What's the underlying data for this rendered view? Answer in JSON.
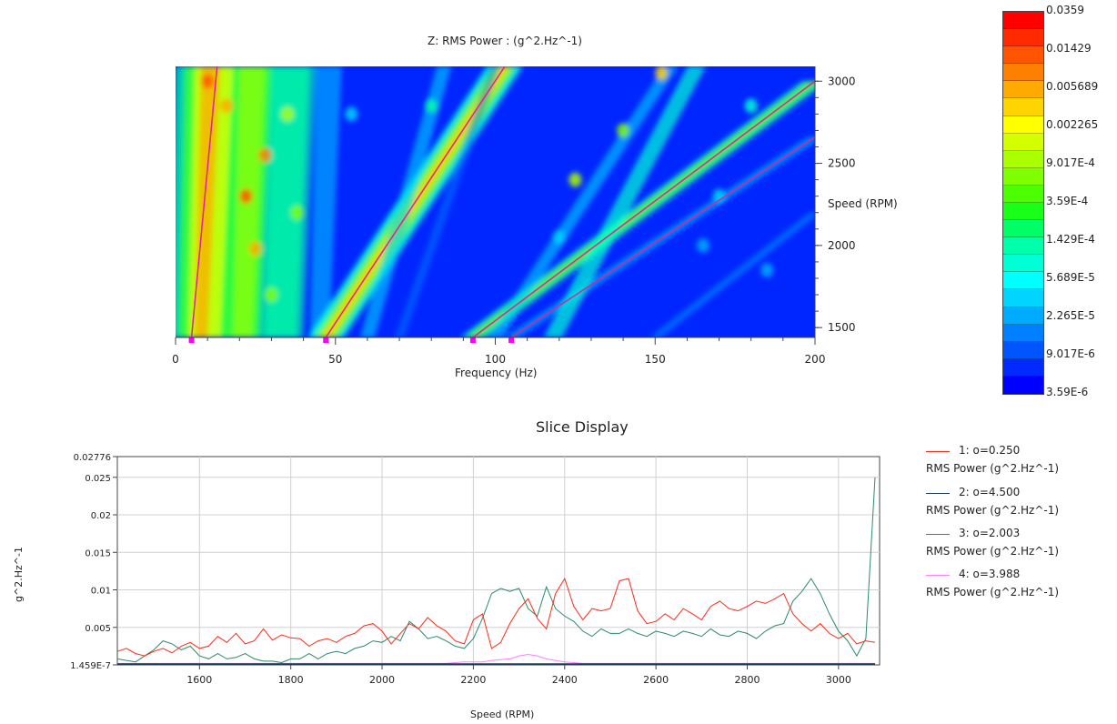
{
  "colors": {
    "map_background": "#0026ff",
    "order_line": "#e0209a",
    "marker": "#ff00ff",
    "grid": "#d0d0d0",
    "axis": "#444444"
  },
  "waterfall": {
    "title": "Z: RMS Power : (g^2.Hz^-1)",
    "xlabel": "Frequency (Hz)",
    "ylabel": "Speed (RPM)",
    "xticks": [
      "0",
      "50",
      "100",
      "150",
      "200"
    ],
    "yticks": [
      "3000",
      "2500",
      "2000",
      "1500"
    ],
    "colorbar_labels": [
      "0.0359",
      "0.01429",
      "0.005689",
      "0.002265",
      "9.017E-4",
      "3.59E-4",
      "1.429E-4",
      "5.689E-5",
      "2.265E-5",
      "9.017E-6",
      "3.59E-6"
    ],
    "colorbar_colors": [
      "#ff0000",
      "#ff2a00",
      "#ff5500",
      "#ff7f00",
      "#ffaa00",
      "#ffd400",
      "#ffff00",
      "#d4ff00",
      "#aaff00",
      "#7fff00",
      "#4cff00",
      "#1aff1a",
      "#00ff66",
      "#00ffaa",
      "#00ffd4",
      "#00ffff",
      "#00d4ff",
      "#00aaff",
      "#007fff",
      "#0055ff",
      "#002aff",
      "#0000ff"
    ]
  },
  "slice": {
    "title": "Slice Display",
    "xlabel": "Speed (RPM)",
    "ylabel": "g^2.Hz^-1",
    "yticks": [
      "0.02776",
      "0.025",
      "0.02",
      "0.015",
      "0.01",
      "0.005",
      "1.459E-7"
    ],
    "xticks": [
      "1600",
      "1800",
      "2000",
      "2200",
      "2400",
      "2600",
      "2800",
      "3000"
    ],
    "legend": [
      {
        "label": "1: o=0.250",
        "sub": "RMS Power (g^2.Hz^-1)",
        "color": "#ff2a1a"
      },
      {
        "label": "2: o=4.500",
        "sub": "RMS Power (g^2.Hz^-1)",
        "color": "#1a3a5a"
      },
      {
        "label": "3: o=2.003",
        "sub": "RMS Power (g^2.Hz^-1)",
        "color": "#2a8a6a"
      },
      {
        "label": "4: o=3.988",
        "sub": "RMS Power (g^2.Hz^-1)",
        "color": "#ff80ff"
      }
    ]
  },
  "chart_data": [
    {
      "type": "heatmap",
      "title": "Z: RMS Power : (g^2.Hz^-1)",
      "xlabel": "Frequency (Hz)",
      "ylabel": "Speed (RPM)",
      "xlim": [
        0,
        200
      ],
      "ylim": [
        1440,
        3090
      ],
      "colorscale": "log",
      "zlim": [
        3.59e-06,
        0.0359
      ],
      "order_lines": [
        {
          "name": "o=0.250",
          "points": [
            [
              5,
              1440
            ],
            [
              13,
              3090
            ]
          ]
        },
        {
          "name": "o=2.003",
          "points": [
            [
              47,
              1440
            ],
            [
              103,
              3090
            ]
          ]
        },
        {
          "name": "o=4.500",
          "points": [
            [
              93,
              1440
            ],
            [
              200,
              3000
            ]
          ]
        },
        {
          "name": "o=3.988",
          "points": [
            [
              105,
              1440
            ],
            [
              200,
              2660
            ]
          ]
        }
      ],
      "markers_hz": [
        5,
        47,
        93,
        105
      ]
    },
    {
      "type": "line",
      "title": "Slice Display",
      "xlabel": "Speed (RPM)",
      "ylabel": "g^2.Hz^-1",
      "xlim": [
        1420,
        3090
      ],
      "ylim": [
        1.459e-07,
        0.02776
      ],
      "grid": true,
      "legend_position": "right",
      "x": [
        1420,
        1440,
        1460,
        1480,
        1500,
        1520,
        1540,
        1560,
        1580,
        1600,
        1620,
        1640,
        1660,
        1680,
        1700,
        1720,
        1740,
        1760,
        1780,
        1800,
        1820,
        1840,
        1860,
        1880,
        1900,
        1920,
        1940,
        1960,
        1980,
        2000,
        2020,
        2040,
        2060,
        2080,
        2100,
        2120,
        2140,
        2160,
        2180,
        2200,
        2220,
        2240,
        2260,
        2280,
        2300,
        2320,
        2340,
        2360,
        2380,
        2400,
        2420,
        2440,
        2460,
        2480,
        2500,
        2520,
        2540,
        2560,
        2580,
        2600,
        2620,
        2640,
        2660,
        2680,
        2700,
        2720,
        2740,
        2760,
        2780,
        2800,
        2820,
        2840,
        2860,
        2880,
        2900,
        2920,
        2940,
        2960,
        2980,
        3000,
        3020,
        3040,
        3060,
        3080
      ],
      "series": [
        {
          "name": "1: o=0.250",
          "color": "#ff2a1a",
          "values": [
            0.0018,
            0.0022,
            0.0015,
            0.0012,
            0.0018,
            0.0022,
            0.0016,
            0.0025,
            0.003,
            0.0022,
            0.0025,
            0.0038,
            0.003,
            0.0042,
            0.0028,
            0.0032,
            0.0048,
            0.0033,
            0.004,
            0.0036,
            0.0035,
            0.0025,
            0.0032,
            0.0035,
            0.003,
            0.0038,
            0.0042,
            0.0052,
            0.0055,
            0.0045,
            0.0028,
            0.0042,
            0.0055,
            0.0048,
            0.0063,
            0.0052,
            0.0045,
            0.0032,
            0.0028,
            0.006,
            0.0068,
            0.0022,
            0.003,
            0.0055,
            0.0075,
            0.0088,
            0.0062,
            0.0048,
            0.0095,
            0.0115,
            0.0078,
            0.006,
            0.0075,
            0.0072,
            0.0075,
            0.0112,
            0.0115,
            0.0072,
            0.0055,
            0.0058,
            0.0068,
            0.006,
            0.0075,
            0.0068,
            0.006,
            0.0078,
            0.0085,
            0.0075,
            0.0072,
            0.0078,
            0.0085,
            0.0082,
            0.0088,
            0.0095,
            0.0068,
            0.0055,
            0.0045,
            0.0055,
            0.0042,
            0.0035,
            0.0042,
            0.0028,
            0.0032,
            0.003
          ]
        },
        {
          "name": "2: o=4.500",
          "color": "#1a3a5a",
          "values": [
            0.0001,
            0.0001,
            0.0001,
            0.0001,
            0.0001,
            0.0001,
            0.0001,
            0.0001,
            0.0001,
            0.0001,
            0.0001,
            0.0001,
            0.0001,
            0.0001,
            0.0001,
            0.0001,
            0.0001,
            0.0001,
            0.0001,
            0.0001,
            0.0001,
            0.0001,
            0.0001,
            0.0001,
            0.0001,
            0.0001,
            0.0001,
            0.0001,
            0.0001,
            0.0001,
            0.0001,
            0.0001,
            0.0001,
            0.0001,
            0.0001,
            0.0001,
            0.0001,
            0.0001,
            0.0001,
            0.0001,
            0.0001,
            0.0001,
            0.0001,
            0.0001,
            0.0001,
            0.0001,
            0.0001,
            0.0001,
            0.0001,
            0.0001,
            0.0001,
            0.0001,
            0.0001,
            0.0001,
            0.0001,
            0.0001,
            0.0001,
            0.0001,
            0.0001,
            0.0001,
            0.0001,
            0.0001,
            0.0001,
            0.0001,
            0.0001,
            0.0001,
            0.0001,
            0.0001,
            0.0001,
            0.0001,
            0.0001,
            0.0001,
            0.0001,
            0.0001,
            0.0001,
            0.0001,
            0.0001,
            0.0001,
            0.0001,
            0.0001,
            0.0001,
            0.0001,
            0.0001,
            0.0001
          ]
        },
        {
          "name": "3: o=2.003",
          "color": "#2a8a6a",
          "values": [
            0.0008,
            0.0006,
            0.0004,
            0.0012,
            0.002,
            0.0032,
            0.0028,
            0.002,
            0.0025,
            0.0012,
            0.0008,
            0.0015,
            0.0008,
            0.001,
            0.0015,
            0.0008,
            0.0005,
            0.0005,
            0.0003,
            0.0008,
            0.0008,
            0.0015,
            0.0008,
            0.0015,
            0.0018,
            0.0015,
            0.0022,
            0.0025,
            0.0032,
            0.003,
            0.0038,
            0.0032,
            0.0058,
            0.0048,
            0.0035,
            0.0038,
            0.0032,
            0.0025,
            0.0022,
            0.0035,
            0.0062,
            0.0095,
            0.0102,
            0.0098,
            0.0102,
            0.0075,
            0.0065,
            0.0104,
            0.0075,
            0.0065,
            0.0058,
            0.0045,
            0.0038,
            0.0048,
            0.0042,
            0.0042,
            0.0048,
            0.0042,
            0.0038,
            0.0045,
            0.0042,
            0.0038,
            0.0045,
            0.0042,
            0.0038,
            0.0048,
            0.004,
            0.0038,
            0.0045,
            0.0042,
            0.0035,
            0.0045,
            0.0052,
            0.0055,
            0.0085,
            0.0098,
            0.0115,
            0.0095,
            0.0068,
            0.0045,
            0.0032,
            0.0012,
            0.0035,
            0.025
          ]
        },
        {
          "name": "4: o=3.988",
          "color": "#ff80ff",
          "values": [
            0.0002,
            0.0002,
            0.0002,
            0.0002,
            0.0002,
            0.0002,
            0.0002,
            0.0002,
            0.0002,
            0.0002,
            0.0002,
            0.0002,
            0.0002,
            0.0002,
            0.0002,
            0.0002,
            0.0002,
            0.0002,
            0.0002,
            0.0002,
            0.0002,
            0.0002,
            0.0002,
            0.0002,
            0.0002,
            0.0002,
            0.0002,
            0.0002,
            0.0002,
            0.0002,
            0.0002,
            0.0002,
            0.0002,
            0.0002,
            0.0002,
            0.0002,
            0.0002,
            0.0003,
            0.0004,
            0.0004,
            0.0004,
            0.0006,
            0.0007,
            0.0008,
            0.0012,
            0.0014,
            0.0012,
            0.0008,
            0.0006,
            0.0004,
            0.0003,
            0.0002,
            0.0002,
            0.0002,
            0.0002,
            0.0002,
            0.0002,
            0.0002,
            0.0002,
            0.0002,
            0.0002,
            0.0002,
            0.0002,
            0.0002,
            0.0002,
            0.0002,
            0.0002,
            0.0002,
            0.0002,
            0.0002,
            0.0002,
            0.0002,
            0.0002,
            0.0002,
            0.0002,
            0.0002,
            0.0002,
            0.0002,
            0.0002,
            0.0002,
            0.0002,
            0.0002,
            0.0002,
            0.0002
          ]
        }
      ]
    }
  ]
}
